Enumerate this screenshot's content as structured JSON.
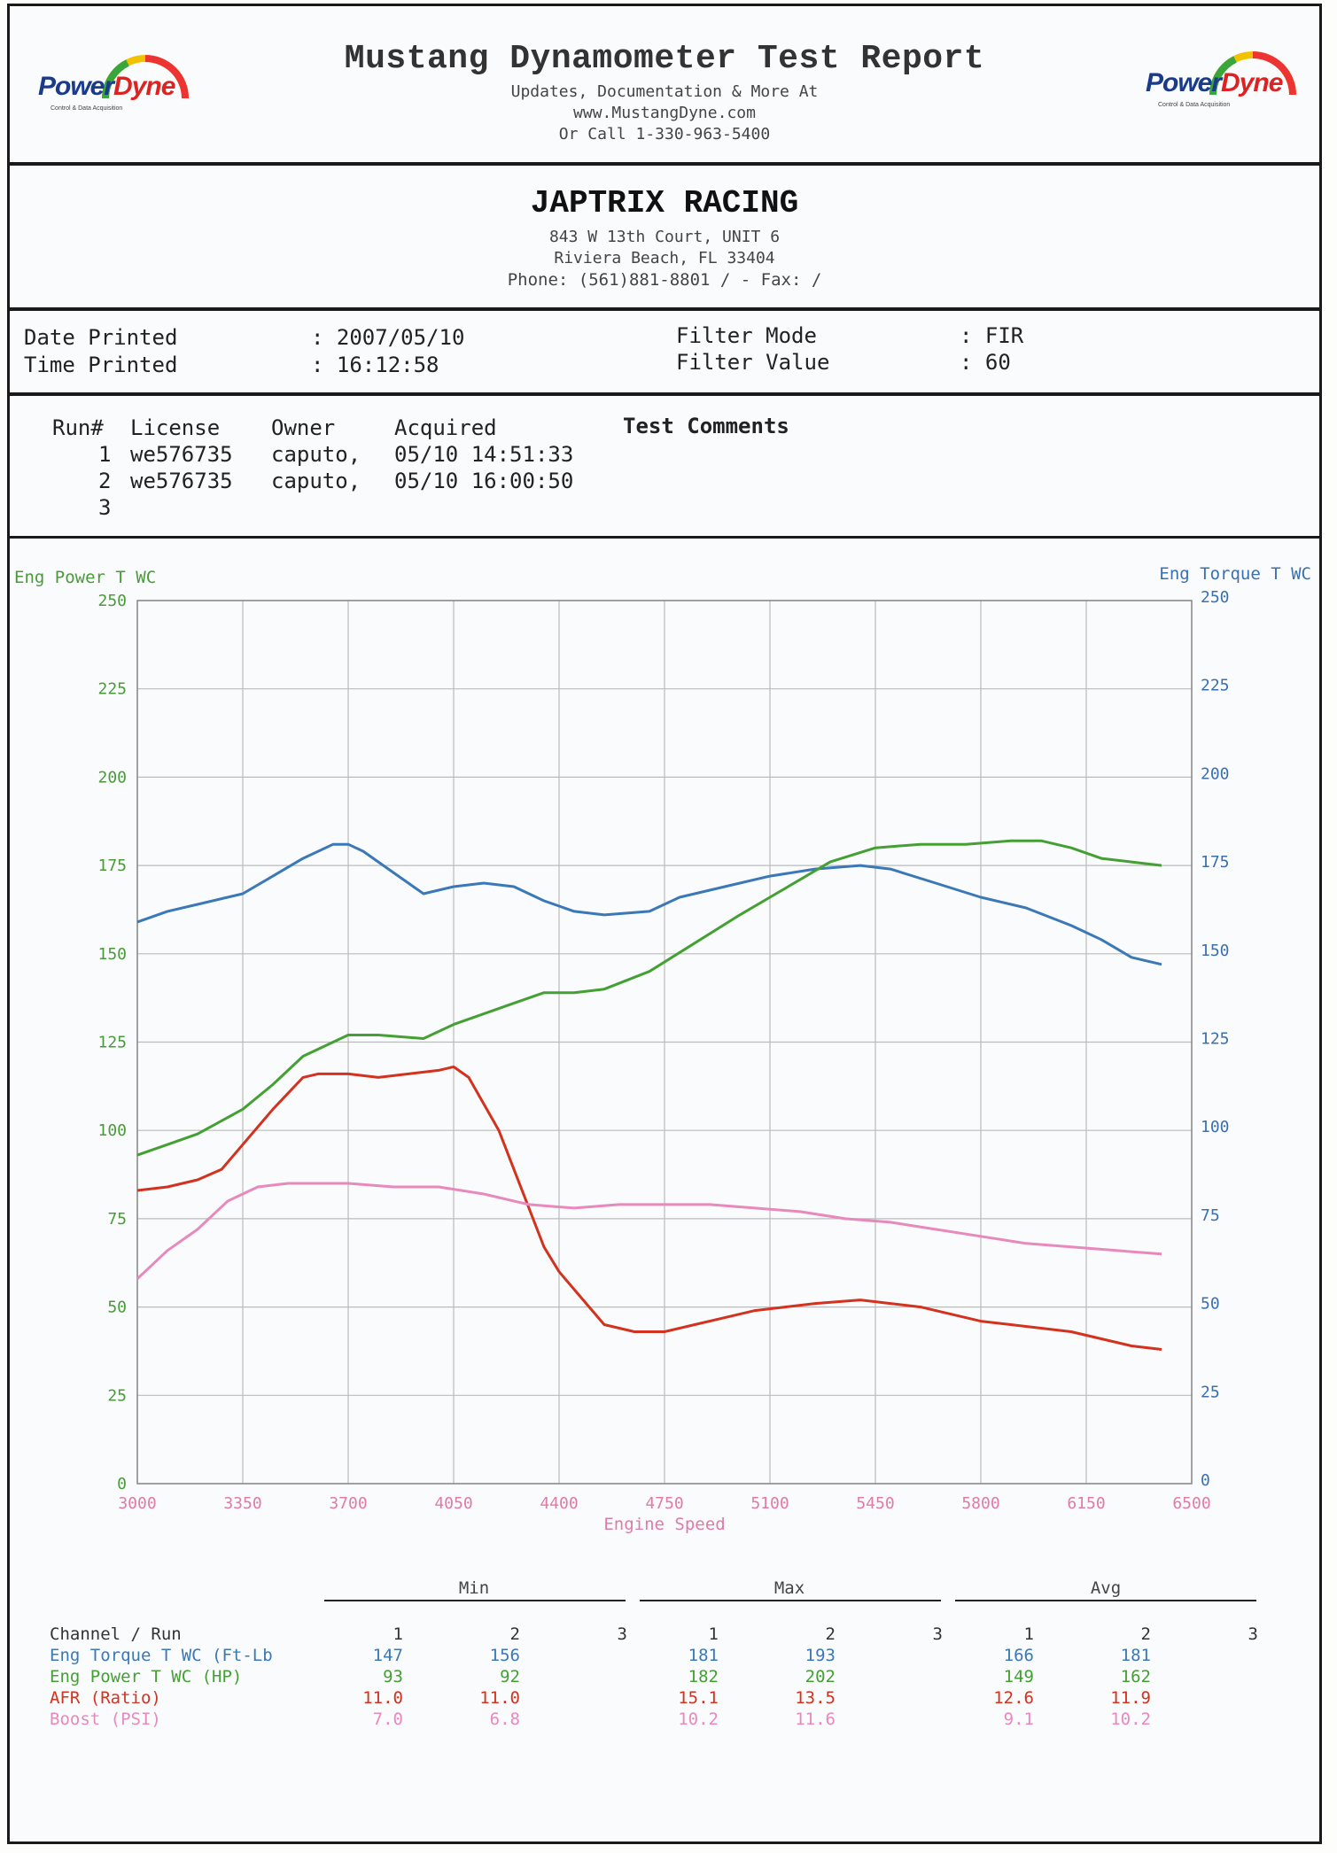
{
  "report": {
    "title": "Mustang Dynamometer Test Report",
    "sub1": "Updates, Documentation & More At",
    "sub2": "www.MustangDyne.com",
    "sub3": "Or Call 1-330-963-5400",
    "logo_word_1": "Power",
    "logo_word_2": "Dyne",
    "logo_tag": "Control & Data Acquisition"
  },
  "shop": {
    "name": "JAPTRIX RACING",
    "address1": "843 W 13th Court, UNIT 6",
    "address2": "Riviera Beach, FL  33404",
    "phone": "Phone: (561)881-8801 /   - Fax:  /"
  },
  "meta": {
    "date_label": "Date Printed",
    "date_value": ": 2007/05/10",
    "time_label": "Time Printed",
    "time_value": ": 16:12:58",
    "filter_mode_label": "Filter Mode",
    "filter_mode_value": ": FIR",
    "filter_value_label": "Filter Value",
    "filter_value_value": ": 60"
  },
  "runs": {
    "headers": [
      "Run#",
      "License",
      "Owner",
      "Acquired",
      "Test Comments"
    ],
    "rows": [
      {
        "run": "1",
        "license": "we576735",
        "owner": "caputo,",
        "acquired": "05/10 14:51:33"
      },
      {
        "run": "2",
        "license": "we576735",
        "owner": "caputo,",
        "acquired": "05/10 16:00:50"
      },
      {
        "run": "3",
        "license": "",
        "owner": "",
        "acquired": ""
      }
    ]
  },
  "colors": {
    "grid": "#bbbbbb",
    "axis_green": "#4a9a3a",
    "axis_blue": "#3a6fb0",
    "axis_pink": "#e07aa8",
    "torque": "#3a78b8",
    "power": "#44a033",
    "afr": "#d2321e",
    "boost": "#e889bd"
  },
  "chart_data": {
    "type": "line",
    "title": "",
    "xlabel": "Engine Speed",
    "ylabel_left": "Eng Power T WC",
    "ylabel_right": "Eng Torque T WC",
    "xlim": [
      3000,
      6500
    ],
    "ylim": [
      0,
      250
    ],
    "x_ticks": [
      3000,
      3350,
      3700,
      4050,
      4400,
      4750,
      5100,
      5450,
      5800,
      6150,
      6500
    ],
    "y_ticks": [
      0,
      25,
      50,
      75,
      100,
      125,
      150,
      175,
      200,
      225,
      250
    ],
    "series": [
      {
        "name": "Eng Torque T WC (Ft-Lb)",
        "color_key": "torque",
        "x": [
          3000,
          3100,
          3200,
          3350,
          3450,
          3550,
          3650,
          3700,
          3750,
          3850,
          3950,
          4050,
          4150,
          4250,
          4350,
          4450,
          4550,
          4700,
          4800,
          4950,
          5100,
          5250,
          5400,
          5500,
          5650,
          5800,
          5950,
          6100,
          6200,
          6300,
          6400
        ],
        "y": [
          159,
          162,
          164,
          167,
          172,
          177,
          181,
          181,
          179,
          173,
          167,
          169,
          170,
          169,
          165,
          162,
          161,
          162,
          166,
          169,
          172,
          174,
          175,
          174,
          170,
          166,
          163,
          158,
          154,
          149,
          147
        ]
      },
      {
        "name": "Eng Power T WC (HP)",
        "color_key": "power",
        "x": [
          3000,
          3100,
          3200,
          3350,
          3450,
          3550,
          3650,
          3700,
          3800,
          3950,
          4050,
          4150,
          4250,
          4350,
          4450,
          4550,
          4700,
          4850,
          5000,
          5100,
          5200,
          5300,
          5450,
          5600,
          5750,
          5900,
          6000,
          6100,
          6200,
          6300,
          6400
        ],
        "y": [
          93,
          96,
          99,
          106,
          113,
          121,
          125,
          127,
          127,
          126,
          130,
          133,
          136,
          139,
          139,
          140,
          145,
          153,
          161,
          166,
          171,
          176,
          180,
          181,
          181,
          182,
          182,
          180,
          177,
          176,
          175
        ]
      },
      {
        "name": "AFR (Ratio)",
        "color_key": "afr",
        "x": [
          3000,
          3100,
          3200,
          3280,
          3350,
          3450,
          3550,
          3600,
          3700,
          3800,
          3900,
          4000,
          4050,
          4100,
          4200,
          4300,
          4350,
          4400,
          4500,
          4550,
          4650,
          4750,
          4850,
          4950,
          5050,
          5150,
          5250,
          5400,
          5500,
          5600,
          5700,
          5800,
          5900,
          6000,
          6100,
          6200,
          6300,
          6400
        ],
        "y": [
          83,
          84,
          86,
          89,
          96,
          106,
          115,
          116,
          116,
          115,
          116,
          117,
          118,
          115,
          100,
          78,
          67,
          60,
          50,
          45,
          43,
          43,
          45,
          47,
          49,
          50,
          51,
          52,
          51,
          50,
          48,
          46,
          45,
          44,
          43,
          41,
          39,
          38
        ]
      },
      {
        "name": "Boost (PSI)",
        "color_key": "boost",
        "x": [
          3000,
          3100,
          3200,
          3300,
          3400,
          3500,
          3600,
          3700,
          3850,
          4000,
          4150,
          4300,
          4450,
          4600,
          4750,
          4900,
          5050,
          5200,
          5350,
          5500,
          5650,
          5800,
          5950,
          6100,
          6250,
          6400
        ],
        "y": [
          58,
          66,
          72,
          80,
          84,
          85,
          85,
          85,
          84,
          84,
          82,
          79,
          78,
          79,
          79,
          79,
          78,
          77,
          75,
          74,
          72,
          70,
          68,
          67,
          66,
          65
        ]
      }
    ]
  },
  "stats": {
    "groups": [
      "Min",
      "Max",
      "Avg"
    ],
    "run_cols": [
      "1",
      "2",
      "3"
    ],
    "channel_header": "Channel / Run",
    "rows": [
      {
        "name": "Eng Torque T WC (Ft-Lb",
        "color_key": "torque",
        "min": [
          "147",
          "156",
          ""
        ],
        "max": [
          "181",
          "193",
          ""
        ],
        "avg": [
          "166",
          "181",
          ""
        ]
      },
      {
        "name": "Eng Power T WC (HP)",
        "color_key": "power",
        "min": [
          "93",
          "92",
          ""
        ],
        "max": [
          "182",
          "202",
          ""
        ],
        "avg": [
          "149",
          "162",
          ""
        ]
      },
      {
        "name": "AFR (Ratio)",
        "color_key": "afr",
        "min": [
          "11.0",
          "11.0",
          ""
        ],
        "max": [
          "15.1",
          "13.5",
          ""
        ],
        "avg": [
          "12.6",
          "11.9",
          ""
        ]
      },
      {
        "name": "Boost (PSI)",
        "color_key": "boost",
        "min": [
          "7.0",
          "6.8",
          ""
        ],
        "max": [
          "10.2",
          "11.6",
          ""
        ],
        "avg": [
          "9.1",
          "10.2",
          ""
        ]
      }
    ]
  }
}
